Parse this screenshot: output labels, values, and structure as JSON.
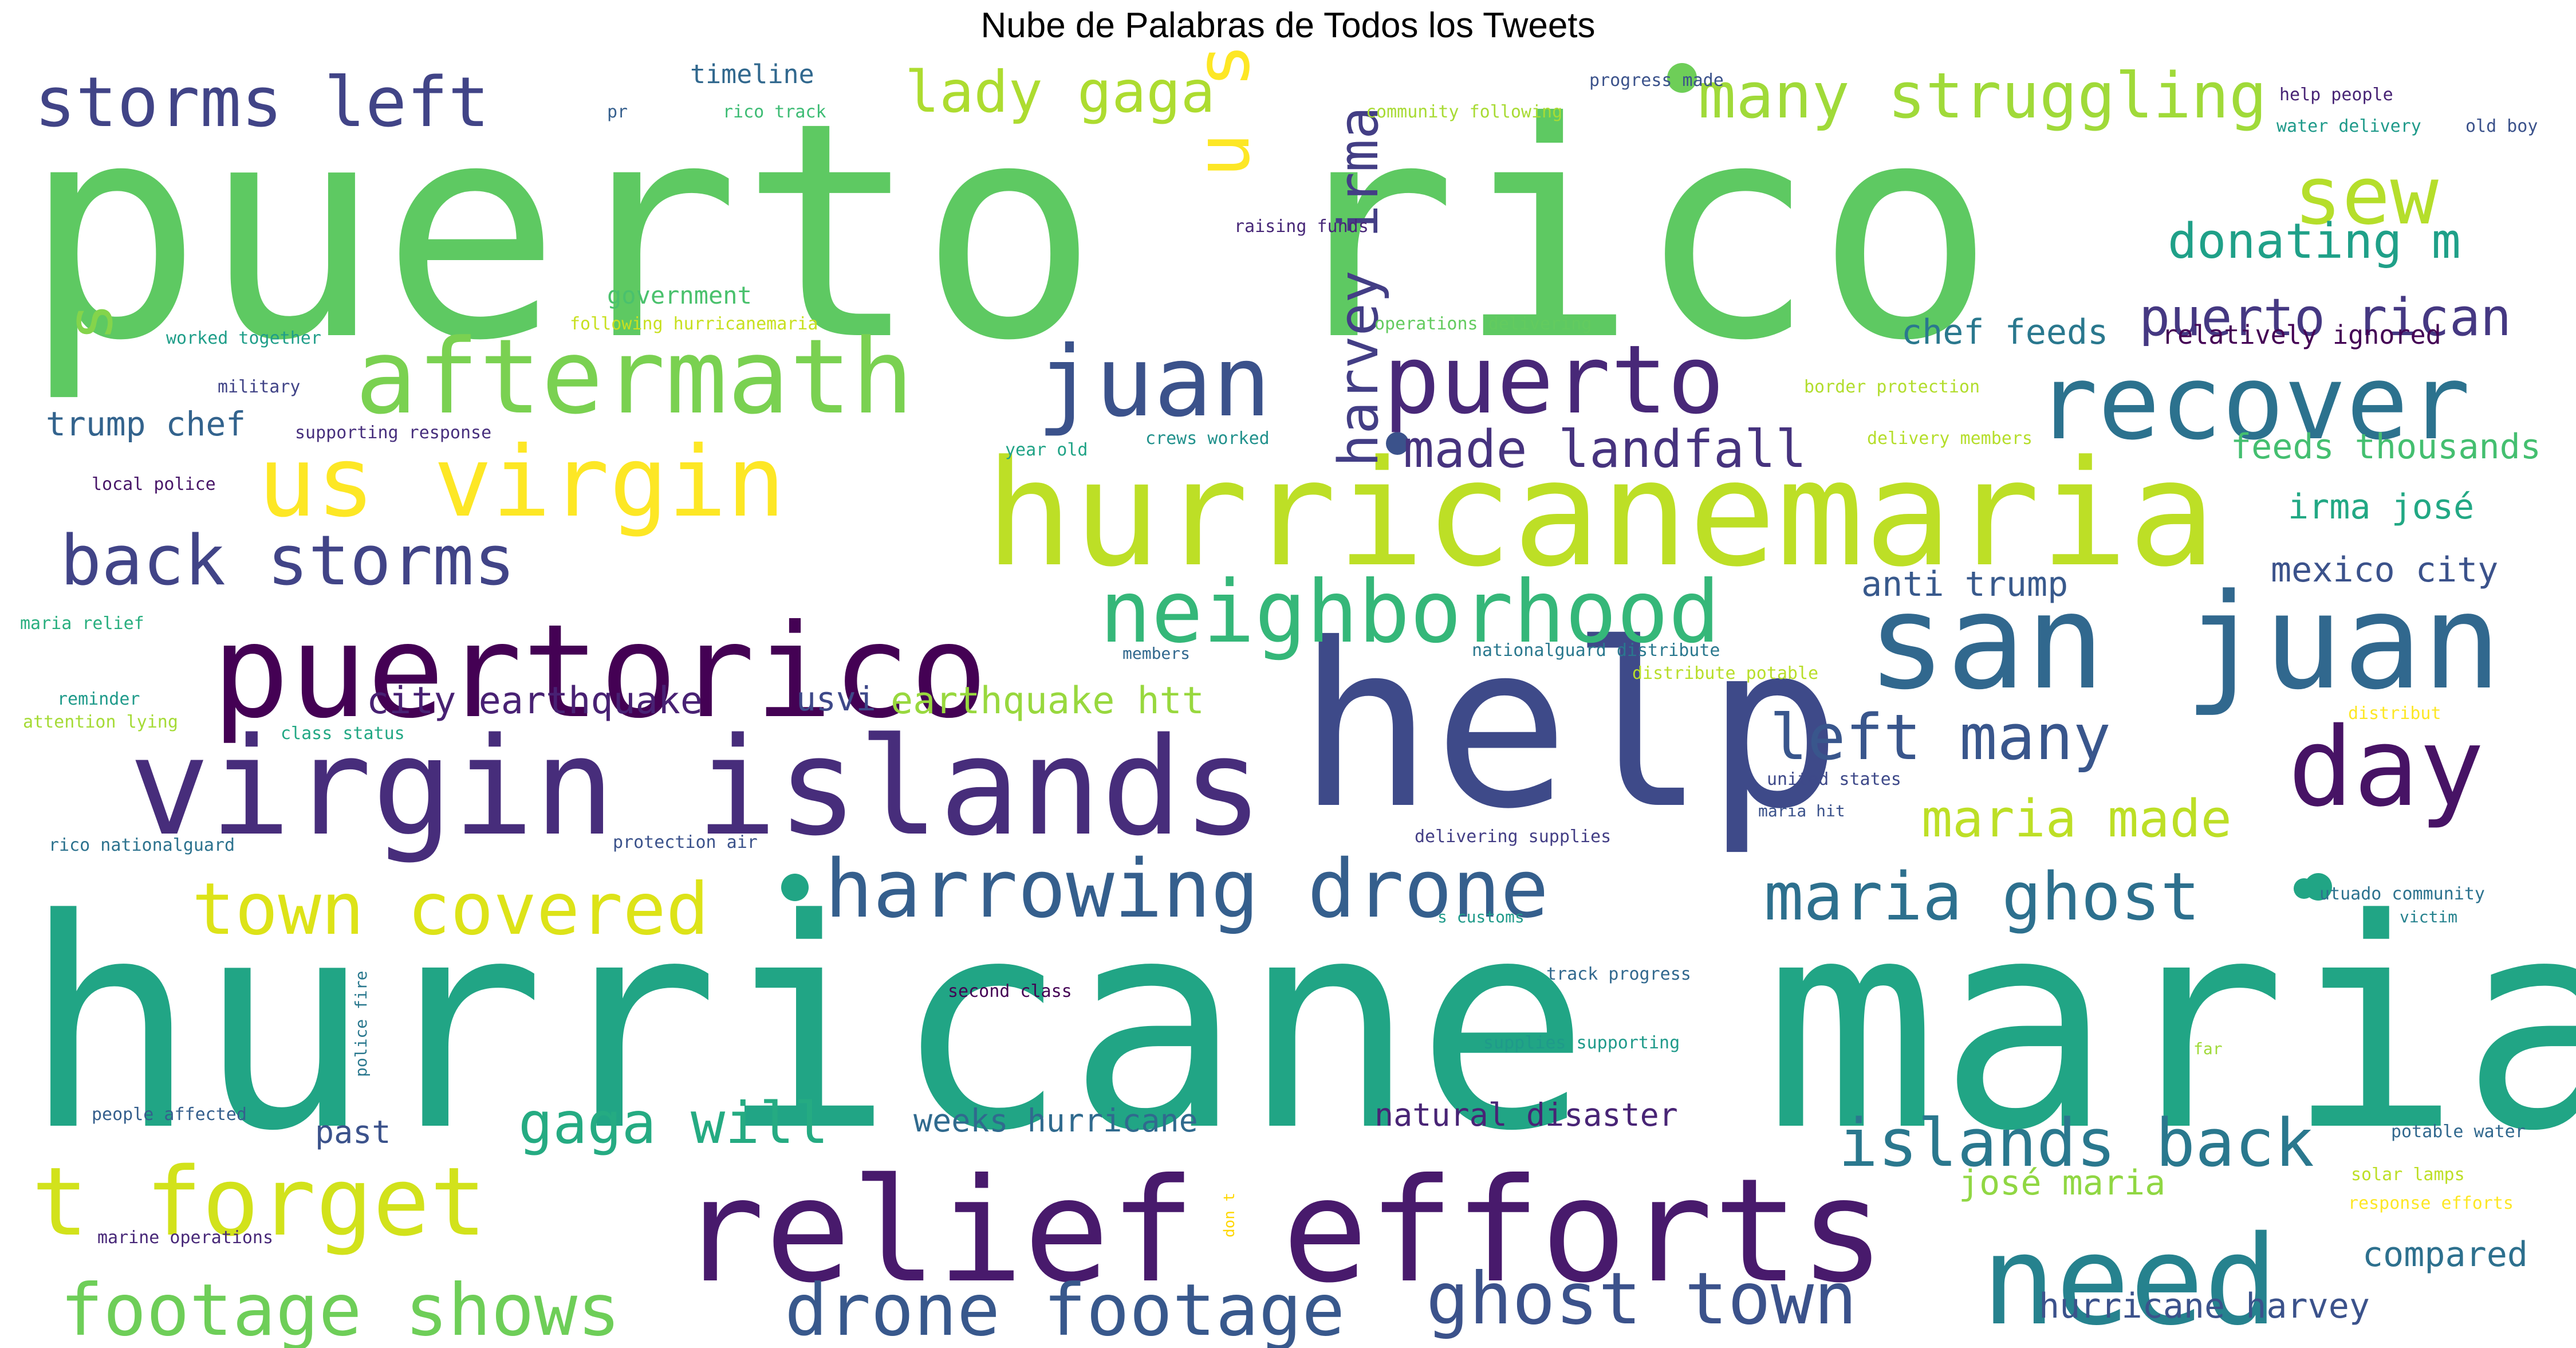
{
  "chart_data": {
    "type": "wordcloud",
    "title": "Nube de Palabras de Todos los Tweets",
    "colormap": "viridis",
    "background": "#ffffff",
    "words": [
      {
        "text": "puerto rico",
        "weight": 100,
        "color": "#5ec962"
      },
      {
        "text": "hurricane maria",
        "weight": 98,
        "color": "#21a585"
      },
      {
        "text": "help",
        "weight": 72,
        "color": "#3e4a89"
      },
      {
        "text": "hurricanemaria",
        "weight": 60,
        "color": "#bddf26"
      },
      {
        "text": "relief efforts",
        "weight": 58,
        "color": "#481a6c"
      },
      {
        "text": "virgin islands",
        "weight": 55,
        "color": "#472d7b"
      },
      {
        "text": "san juan",
        "weight": 54,
        "color": "#31688e"
      },
      {
        "text": "puertorico",
        "weight": 52,
        "color": "#440154"
      },
      {
        "text": "need",
        "weight": 49,
        "color": "#26828e"
      },
      {
        "text": "day",
        "weight": 45,
        "color": "#471365"
      },
      {
        "text": "recover",
        "weight": 42,
        "color": "#2c728e"
      },
      {
        "text": "aftermath",
        "weight": 42,
        "color": "#7ad151"
      },
      {
        "text": "us virgin",
        "weight": 41,
        "color": "#fde725"
      },
      {
        "text": "juan",
        "weight": 41,
        "color": "#3b528b"
      },
      {
        "text": "puerto",
        "weight": 40,
        "color": "#482878"
      },
      {
        "text": "t forget",
        "weight": 40,
        "color": "#d2e21b"
      },
      {
        "text": "neighborhood",
        "weight": 37,
        "color": "#35b779"
      },
      {
        "text": "harrowing drone",
        "weight": 33,
        "color": "#355f8d"
      },
      {
        "text": "sew",
        "weight": 33,
        "color": "#b5de2b"
      },
      {
        "text": "footage shows",
        "weight": 30,
        "color": "#6ece58"
      },
      {
        "text": "drone footage",
        "weight": 30,
        "color": "#38588c"
      },
      {
        "text": "ghost town",
        "weight": 30,
        "color": "#3b528b"
      },
      {
        "text": "town covered",
        "weight": 30,
        "color": "#dde318"
      },
      {
        "text": "back storms",
        "weight": 29,
        "color": "#414487"
      },
      {
        "text": "storms left",
        "weight": 29,
        "color": "#414487"
      },
      {
        "text": "maria ghost",
        "weight": 28,
        "color": "#2d708e"
      },
      {
        "text": "islands back",
        "weight": 28,
        "color": "#2a788e"
      },
      {
        "text": "left many",
        "weight": 27,
        "color": "#39568c"
      },
      {
        "text": "u s",
        "weight": 27,
        "color": "#fde725"
      },
      {
        "text": "s",
        "weight": 27,
        "color": "#84d44b"
      },
      {
        "text": "many struggling",
        "weight": 26,
        "color": "#a0da39"
      },
      {
        "text": "harvey irma",
        "weight": 25,
        "color": "#433e85"
      },
      {
        "text": "lady gaga",
        "weight": 24,
        "color": "#addc30"
      },
      {
        "text": "gaga will",
        "weight": 23,
        "color": "#25ab82"
      },
      {
        "text": "puerto rican",
        "weight": 22,
        "color": "#453882"
      },
      {
        "text": "made landfall",
        "weight": 22,
        "color": "#46337e"
      },
      {
        "text": "maria made",
        "weight": 22,
        "color": "#bddf26"
      },
      {
        "text": "donating m",
        "weight": 20,
        "color": "#1fa088"
      },
      {
        "text": "city earthquake",
        "weight": 16,
        "color": "#482173"
      },
      {
        "text": "earthquake htt",
        "weight": 16,
        "color": "#98d83e"
      },
      {
        "text": "chef feeds",
        "weight": 15,
        "color": "#2a788e"
      },
      {
        "text": "anti trump",
        "weight": 15,
        "color": "#38598c"
      },
      {
        "text": "mexico city",
        "weight": 15,
        "color": "#3b528b"
      },
      {
        "text": "irma josé",
        "weight": 15,
        "color": "#22a884"
      },
      {
        "text": "feeds thousands",
        "weight": 15,
        "color": "#44bf70"
      },
      {
        "text": "josé maria",
        "weight": 15,
        "color": "#90d743"
      },
      {
        "text": "hurricane harvey",
        "weight": 15,
        "color": "#3b528b"
      },
      {
        "text": "compared",
        "weight": 14,
        "color": "#2d708e"
      },
      {
        "text": "trump chef",
        "weight": 14,
        "color": "#33638d"
      },
      {
        "text": "usvi",
        "weight": 14,
        "color": "#3e4989"
      },
      {
        "text": "weeks hurricane",
        "weight": 14,
        "color": "#306a8e"
      },
      {
        "text": "natural disaster",
        "weight": 14,
        "color": "#482475"
      },
      {
        "text": "past",
        "weight": 13,
        "color": "#3b528b"
      },
      {
        "text": "relatively ignored",
        "weight": 12,
        "color": "#440154"
      },
      {
        "text": "timeline",
        "weight": 12,
        "color": "#31688e"
      },
      {
        "text": "government",
        "weight": 11,
        "color": "#4ac16d"
      },
      {
        "text": "pr",
        "weight": 9,
        "color": "#355f8d"
      },
      {
        "text": "rico track",
        "weight": 9,
        "color": "#3dbc74"
      },
      {
        "text": "progress made",
        "weight": 9,
        "color": "#3b528b"
      },
      {
        "text": "community following",
        "weight": 9,
        "color": "#a8db34"
      },
      {
        "text": "help people",
        "weight": 9,
        "color": "#482475"
      },
      {
        "text": "water delivery",
        "weight": 9,
        "color": "#1f9a8a"
      },
      {
        "text": "old boy",
        "weight": 9,
        "color": "#3b528b"
      },
      {
        "text": "raising funds",
        "weight": 9,
        "color": "#482878"
      },
      {
        "text": "operations delivering",
        "weight": 9,
        "color": "#63cb5f"
      },
      {
        "text": "following hurricanemaria",
        "weight": 9,
        "color": "#c8e020"
      },
      {
        "text": "worked together",
        "weight": 9,
        "color": "#1f9e89"
      },
      {
        "text": "military",
        "weight": 9,
        "color": "#414487"
      },
      {
        "text": "border protection",
        "weight": 9,
        "color": "#b2dd2d"
      },
      {
        "text": "supporting response",
        "weight": 9,
        "color": "#472f7d"
      },
      {
        "text": "year old",
        "weight": 9,
        "color": "#20a386"
      },
      {
        "text": "crews worked",
        "weight": 9,
        "color": "#21918c"
      },
      {
        "text": "delivery members",
        "weight": 9,
        "color": "#b5de2b"
      },
      {
        "text": "local police",
        "weight": 9,
        "color": "#481668"
      },
      {
        "text": "maria relief",
        "weight": 9,
        "color": "#29af7f"
      },
      {
        "text": "members",
        "weight": 8,
        "color": "#31688e"
      },
      {
        "text": "nationalguard distribute",
        "weight": 9,
        "color": "#2a788e"
      },
      {
        "text": "distribute potable",
        "weight": 9,
        "color": "#b8de29"
      },
      {
        "text": "reminder",
        "weight": 9,
        "color": "#1f9a8a"
      },
      {
        "text": "attention lying",
        "weight": 9,
        "color": "#a5db36"
      },
      {
        "text": "class status",
        "weight": 9,
        "color": "#22a884"
      },
      {
        "text": "distribut",
        "weight": 9,
        "color": "#fde725"
      },
      {
        "text": "united states",
        "weight": 9,
        "color": "#3e4989"
      },
      {
        "text": "maria hit",
        "weight": 8,
        "color": "#3b528b"
      },
      {
        "text": "delivering supplies",
        "weight": 9,
        "color": "#433e85"
      },
      {
        "text": "rico nationalguard",
        "weight": 9,
        "color": "#2c728e"
      },
      {
        "text": "protection air",
        "weight": 9,
        "color": "#3b528b"
      },
      {
        "text": "utuado community",
        "weight": 9,
        "color": "#2c728e"
      },
      {
        "text": "victim",
        "weight": 8,
        "color": "#26828e"
      },
      {
        "text": "s customs",
        "weight": 8,
        "color": "#1f9a8a"
      },
      {
        "text": "second class",
        "weight": 9,
        "color": "#440154"
      },
      {
        "text": "track progress",
        "weight": 9,
        "color": "#31688e"
      },
      {
        "text": "police fire",
        "weight": 8,
        "color": "#2a788e"
      },
      {
        "text": "supplies supporting",
        "weight": 9,
        "color": "#1f9a8a"
      },
      {
        "text": "far",
        "weight": 8,
        "color": "#a0da39"
      },
      {
        "text": "people affected",
        "weight": 9,
        "color": "#355f8d"
      },
      {
        "text": "potable water",
        "weight": 9,
        "color": "#31688e"
      },
      {
        "text": "solar lamps",
        "weight": 9,
        "color": "#bddf26"
      },
      {
        "text": "don t",
        "weight": 8,
        "color": "#ffd700"
      },
      {
        "text": "response efforts",
        "weight": 9,
        "color": "#fde725"
      },
      {
        "text": "marine operations",
        "weight": 9,
        "color": "#482878"
      }
    ]
  }
}
